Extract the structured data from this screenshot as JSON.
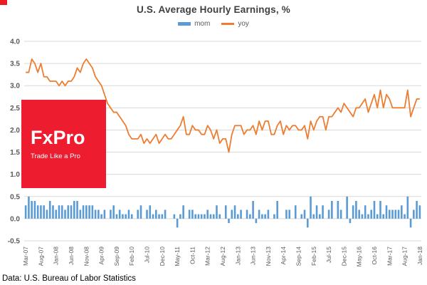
{
  "corner_mark_color": "#ed1c24",
  "footer": "Data: U.S. Bureau of Labor Statistics",
  "watermark": {
    "brand": "FxPro",
    "tagline": "Trade Like a Pro",
    "bg": "#ed1c2e"
  },
  "colors": {
    "title": "#404040",
    "axis_labels": "#595959",
    "gridline": "#d9d9d9",
    "mom": "#5b9bd5",
    "yoy": "#ed7d31"
  },
  "chart_data": {
    "type": "bar",
    "combo": "bar + line",
    "title": "U.S. Average Hourly Earnings,  %",
    "xlabel": "",
    "ylabel": "",
    "ylim": [
      -0.5,
      4.0
    ],
    "y_tick_step": 0.5,
    "grid": true,
    "legend_position": "top",
    "x_frequency": "monthly",
    "x_start": "Mar-07",
    "x_end": "Jan-18",
    "n_points": 131,
    "x_tick_every": 5,
    "x_tick_labels": [
      "Mar-07",
      "Aug-07",
      "Jan-08",
      "Jun-08",
      "Nov-08",
      "Apr-09",
      "Sep-09",
      "Feb-10",
      "Jul-10",
      "Dec-10",
      "May-11",
      "Oct-11",
      "Mar-12",
      "Aug-12",
      "Jan-13",
      "Jun-13",
      "Nov-13",
      "Apr-14",
      "Sep-14",
      "Feb-15",
      "Jul-15",
      "Dec-15",
      "May-16",
      "Oct-16",
      "Mar-17",
      "Aug-17",
      "Jan-18"
    ],
    "series": [
      {
        "name": "mom",
        "type": "bar",
        "color": "#5b9bd5",
        "values": [
          0.3,
          0.5,
          0.4,
          0.4,
          0.3,
          0.3,
          0.3,
          0.2,
          0.4,
          0.3,
          0.2,
          0.3,
          0.3,
          0.2,
          0.3,
          0.3,
          0.4,
          0.4,
          0.2,
          0.3,
          0.3,
          0.3,
          0.3,
          0.2,
          0.2,
          0.1,
          0.2,
          0.0,
          0.2,
          0.3,
          0.1,
          0.2,
          0.1,
          0.1,
          0.2,
          0.1,
          0.0,
          0.2,
          0.3,
          0.0,
          0.2,
          0.3,
          0.1,
          0.2,
          0.1,
          0.1,
          0.2,
          0.0,
          0.0,
          0.1,
          -0.2,
          0.1,
          0.3,
          0.0,
          0.2,
          0.2,
          0.1,
          0.1,
          0.1,
          0.1,
          0.2,
          0.1,
          0.1,
          0.3,
          0.1,
          0.0,
          0.3,
          -0.1,
          0.2,
          0.3,
          0.1,
          0.2,
          0.0,
          0.2,
          0.1,
          0.4,
          -0.1,
          0.2,
          0.1,
          0.1,
          0.2,
          0.0,
          0.1,
          0.4,
          0.0,
          0.0,
          0.2,
          0.2,
          0.0,
          0.3,
          0.0,
          0.1,
          0.2,
          -0.2,
          0.5,
          0.1,
          0.3,
          0.1,
          0.3,
          0.0,
          0.2,
          0.4,
          0.0,
          0.4,
          0.2,
          0.0,
          0.5,
          -0.1,
          0.3,
          0.4,
          0.2,
          0.1,
          0.3,
          0.1,
          0.2,
          0.4,
          0.1,
          0.4,
          0.1,
          0.3,
          0.2,
          0.2,
          0.2,
          0.2,
          0.3,
          0.1,
          0.5,
          -0.2,
          0.2,
          0.4,
          0.3
        ]
      },
      {
        "name": "yoy",
        "type": "line",
        "color": "#ed7d31",
        "values": [
          3.3,
          3.3,
          3.6,
          3.5,
          3.3,
          3.5,
          3.2,
          3.2,
          3.1,
          3.1,
          3.1,
          3.0,
          3.1,
          3.0,
          3.1,
          3.1,
          3.2,
          3.4,
          3.3,
          3.5,
          3.6,
          3.5,
          3.4,
          3.2,
          3.1,
          3.0,
          2.8,
          2.6,
          2.5,
          2.4,
          2.4,
          2.3,
          2.2,
          2.1,
          1.9,
          1.8,
          1.8,
          1.8,
          1.9,
          1.7,
          1.8,
          1.7,
          1.8,
          1.9,
          1.7,
          1.8,
          1.9,
          1.8,
          1.8,
          1.9,
          2.0,
          2.1,
          2.3,
          1.9,
          1.9,
          2.1,
          2.0,
          2.0,
          1.9,
          1.9,
          2.1,
          2.0,
          1.8,
          2.0,
          1.7,
          1.8,
          1.8,
          1.5,
          1.9,
          2.1,
          2.1,
          2.1,
          1.9,
          2.0,
          2.0,
          2.1,
          1.9,
          2.2,
          2.0,
          2.2,
          2.2,
          1.9,
          1.9,
          2.1,
          2.2,
          1.9,
          2.1,
          2.0,
          2.1,
          2.1,
          2.0,
          2.0,
          2.1,
          1.8,
          2.2,
          2.0,
          2.2,
          2.3,
          2.3,
          2.0,
          2.3,
          2.3,
          2.4,
          2.5,
          2.4,
          2.6,
          2.5,
          2.4,
          2.3,
          2.5,
          2.5,
          2.6,
          2.7,
          2.4,
          2.6,
          2.8,
          2.5,
          2.9,
          2.5,
          2.8,
          2.7,
          2.5,
          2.5,
          2.5,
          2.5,
          2.5,
          2.9,
          2.3,
          2.5,
          2.7,
          2.7
        ]
      }
    ]
  }
}
